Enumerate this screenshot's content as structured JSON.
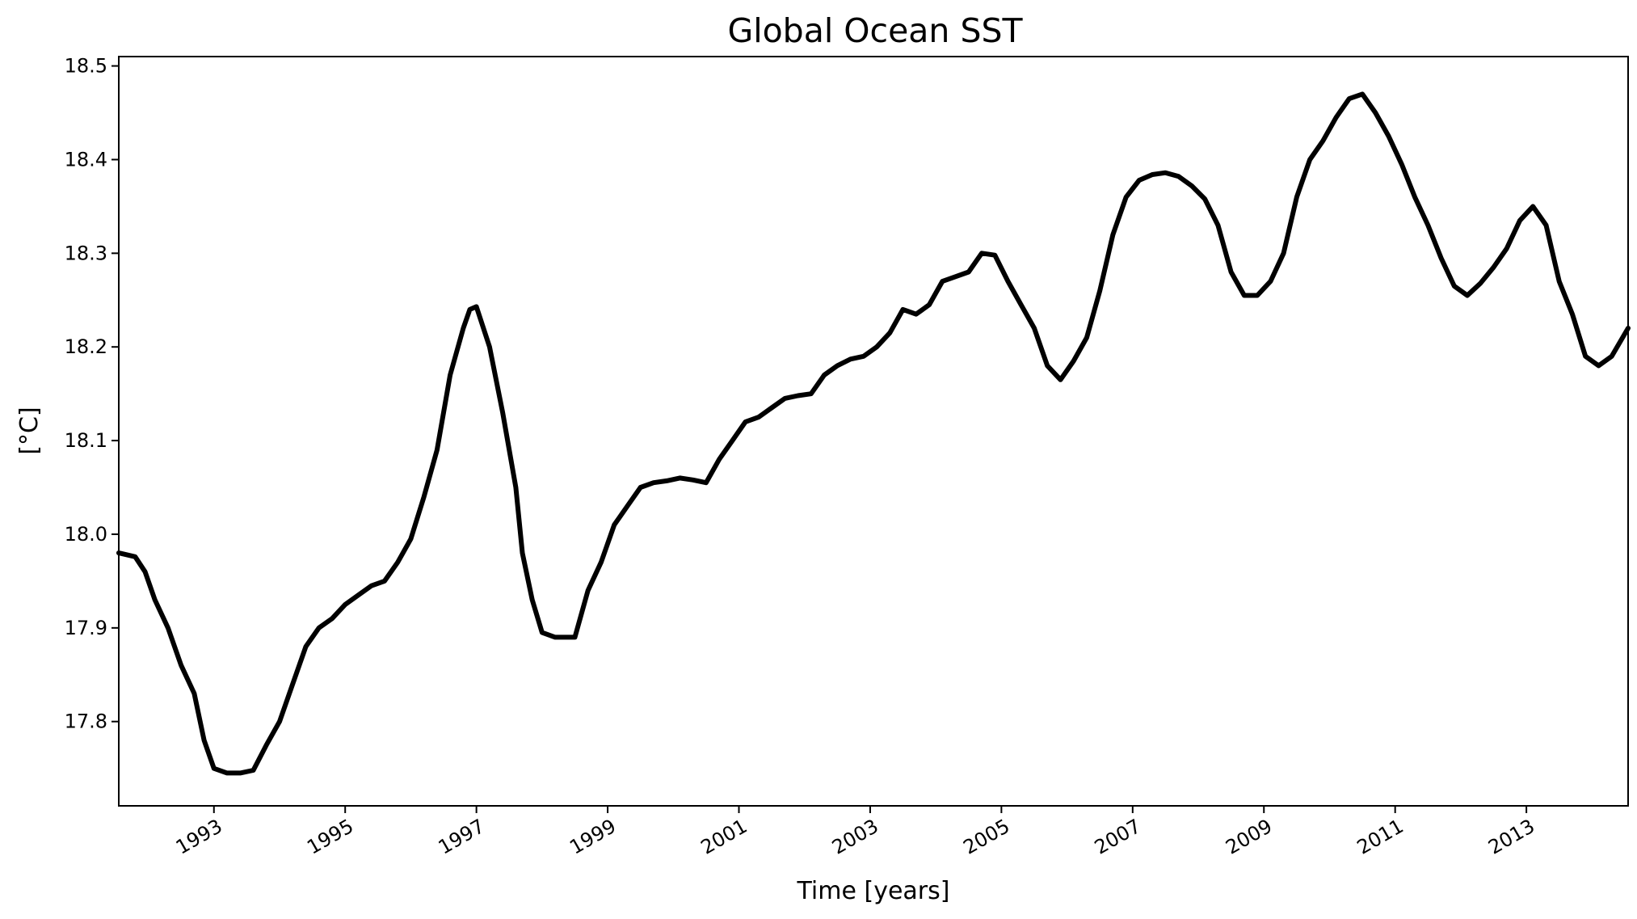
{
  "chart_data": {
    "type": "line",
    "title": "Global Ocean SST",
    "xlabel": "Time [years]",
    "ylabel": "[°C]",
    "xlim": [
      1991.55,
      2014.55
    ],
    "ylim": [
      17.71,
      18.51
    ],
    "grid": false,
    "xticks": [
      1993,
      1995,
      1997,
      1999,
      2001,
      2003,
      2005,
      2007,
      2009,
      2011,
      2013
    ],
    "xtick_labels": [
      "1993",
      "1995",
      "1997",
      "1999",
      "2001",
      "2003",
      "2005",
      "2007",
      "2009",
      "2011",
      "2013"
    ],
    "yticks": [
      17.8,
      17.9,
      18.0,
      18.1,
      18.2,
      18.3,
      18.4,
      18.5
    ],
    "ytick_labels": [
      "17.8",
      "17.9",
      "18.0",
      "18.1",
      "18.2",
      "18.3",
      "18.4",
      "18.5"
    ],
    "series": [
      {
        "name": "Global Ocean SST",
        "color": "#000000",
        "x": [
          1991.55,
          1991.8,
          1991.95,
          1992.1,
          1992.3,
          1992.5,
          1992.7,
          1992.85,
          1993.0,
          1993.2,
          1993.4,
          1993.6,
          1993.8,
          1994.0,
          1994.2,
          1994.4,
          1994.6,
          1994.8,
          1995.0,
          1995.2,
          1995.4,
          1995.6,
          1995.8,
          1996.0,
          1996.2,
          1996.4,
          1996.6,
          1996.8,
          1996.9,
          1997.0,
          1997.2,
          1997.4,
          1997.6,
          1997.7,
          1997.85,
          1998.0,
          1998.2,
          1998.4,
          1998.5,
          1998.7,
          1998.9,
          1999.1,
          1999.3,
          1999.5,
          1999.7,
          1999.9,
          2000.1,
          2000.3,
          2000.5,
          2000.7,
          2000.9,
          2001.1,
          2001.3,
          2001.5,
          2001.7,
          2001.9,
          2002.1,
          2002.3,
          2002.5,
          2002.7,
          2002.9,
          2003.1,
          2003.3,
          2003.5,
          2003.7,
          2003.9,
          2004.1,
          2004.3,
          2004.5,
          2004.7,
          2004.9,
          2005.1,
          2005.3,
          2005.5,
          2005.7,
          2005.9,
          2006.1,
          2006.3,
          2006.5,
          2006.7,
          2006.9,
          2007.1,
          2007.3,
          2007.5,
          2007.7,
          2007.9,
          2008.1,
          2008.3,
          2008.5,
          2008.7,
          2008.9,
          2009.1,
          2009.3,
          2009.5,
          2009.7,
          2009.9,
          2010.1,
          2010.3,
          2010.5,
          2010.7,
          2010.9,
          2011.1,
          2011.3,
          2011.5,
          2011.7,
          2011.9,
          2012.1,
          2012.3,
          2012.5,
          2012.7,
          2012.9,
          2013.1,
          2013.3,
          2013.5,
          2013.7,
          2013.9,
          2014.1,
          2014.3,
          2014.55
        ],
        "y": [
          17.98,
          17.976,
          17.96,
          17.93,
          17.9,
          17.86,
          17.83,
          17.78,
          17.75,
          17.745,
          17.745,
          17.748,
          17.775,
          17.8,
          17.84,
          17.88,
          17.9,
          17.91,
          17.925,
          17.935,
          17.945,
          17.95,
          17.97,
          17.995,
          18.04,
          18.09,
          18.17,
          18.22,
          18.24,
          18.243,
          18.2,
          18.13,
          18.05,
          17.98,
          17.93,
          17.895,
          17.89,
          17.89,
          17.89,
          17.94,
          17.97,
          18.01,
          18.03,
          18.05,
          18.055,
          18.057,
          18.06,
          18.058,
          18.055,
          18.08,
          18.1,
          18.12,
          18.125,
          18.135,
          18.145,
          18.148,
          18.15,
          18.17,
          18.18,
          18.187,
          18.19,
          18.2,
          18.215,
          18.24,
          18.235,
          18.245,
          18.27,
          18.275,
          18.28,
          18.3,
          18.298,
          18.27,
          18.245,
          18.22,
          18.18,
          18.165,
          18.185,
          18.21,
          18.26,
          18.32,
          18.36,
          18.378,
          18.384,
          18.386,
          18.382,
          18.372,
          18.358,
          18.33,
          18.28,
          18.255,
          18.255,
          18.27,
          18.3,
          18.36,
          18.4,
          18.42,
          18.445,
          18.465,
          18.47,
          18.45,
          18.425,
          18.395,
          18.36,
          18.33,
          18.295,
          18.265,
          18.255,
          18.268,
          18.285,
          18.305,
          18.335,
          18.35,
          18.33,
          18.27,
          18.235,
          18.19,
          18.18,
          18.19,
          18.22
        ]
      }
    ]
  }
}
